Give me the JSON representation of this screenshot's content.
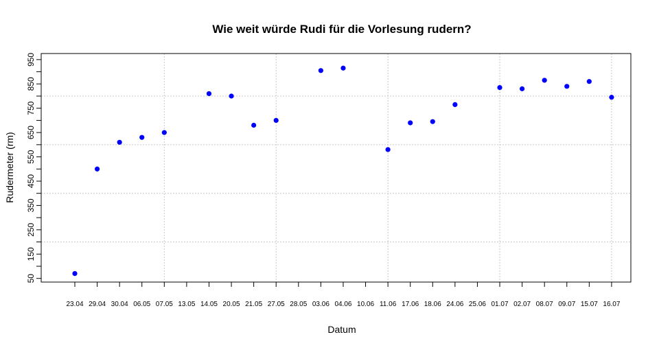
{
  "chart_data": {
    "type": "scatter",
    "title": "Wie weit würde Rudi für die Vorlesung rudern?",
    "xlabel": "Datum",
    "ylabel": "Rudermeter (rm)",
    "ylim": [
      35,
      975
    ],
    "yticks": [
      50,
      100,
      150,
      200,
      250,
      300,
      350,
      400,
      450,
      500,
      550,
      600,
      650,
      700,
      750,
      800,
      850,
      900,
      950
    ],
    "ytick_labels_shown": [
      "50",
      "150",
      "250",
      "350",
      "450",
      "550",
      "650",
      "750",
      "850",
      "950"
    ],
    "grid": true,
    "point_color": "#0000ff",
    "categories": [
      "23.04",
      "29.04",
      "30.04",
      "06.05",
      "07.05",
      "13.05",
      "14.05",
      "20.05",
      "21.05",
      "27.05",
      "28.05",
      "03.06",
      "04.06",
      "10.06",
      "11.06",
      "17.06",
      "18.06",
      "24.06",
      "25.06",
      "01.07",
      "02.07",
      "08.07",
      "09.07",
      "15.07",
      "16.07"
    ],
    "values": [
      70,
      500,
      610,
      630,
      650,
      null,
      810,
      800,
      680,
      700,
      null,
      905,
      915,
      null,
      580,
      690,
      695,
      765,
      null,
      835,
      830,
      865,
      840,
      860,
      795
    ]
  }
}
